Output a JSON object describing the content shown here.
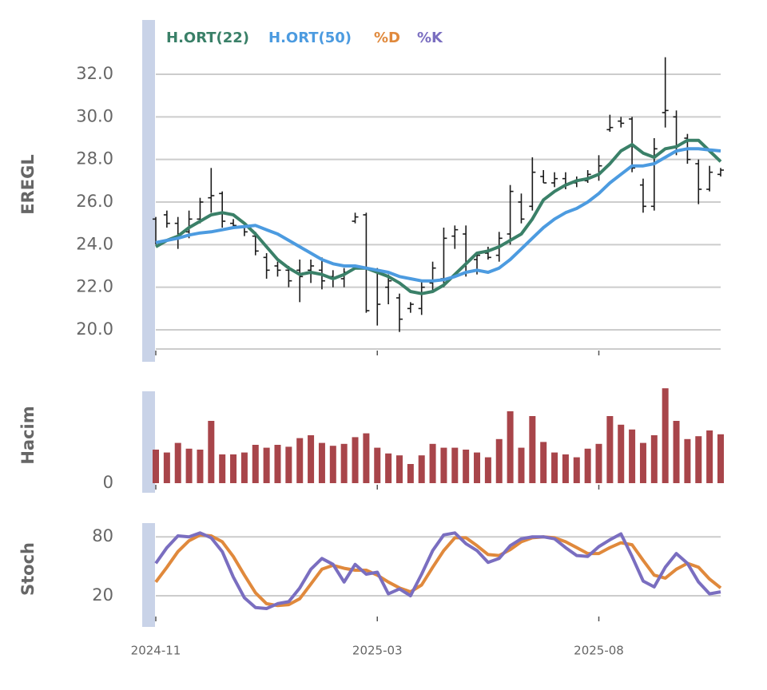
{
  "chart_data": [
    {
      "type": "ohlc",
      "ylabel": "EREGL",
      "color": "#1a1a1a",
      "ylim": [
        19.1,
        34.55
      ],
      "yticks": [
        {
          "value": 20,
          "label": "20.0"
        },
        {
          "value": 22,
          "label": "22.0"
        },
        {
          "value": 24,
          "label": "24.0"
        },
        {
          "value": 26,
          "label": "26.0"
        },
        {
          "value": 28,
          "label": "28.0"
        },
        {
          "value": 30,
          "label": "30.0"
        },
        {
          "value": 32,
          "label": "32.0"
        }
      ],
      "grid": true,
      "ohlc": {
        "open": [
          25.2,
          25.4,
          25.0,
          24.6,
          25.2,
          26.2,
          26.4,
          25.0,
          24.8,
          24.4,
          23.4,
          23.0,
          22.8,
          22.8,
          22.8,
          22.8,
          22.5,
          22.4,
          25.1,
          25.4,
          22.8,
          22.0,
          21.5,
          21.0,
          21.0,
          22.2,
          22.4,
          24.4,
          24.5,
          23.3,
          23.6,
          23.5,
          24.5,
          26.0,
          25.8,
          27.2,
          26.9,
          27.1,
          26.9,
          27.0,
          27.3,
          29.4,
          29.8,
          29.9,
          26.8,
          25.8,
          30.2,
          30.0,
          29.0,
          27.8,
          26.6,
          27.3
        ],
        "high": [
          25.3,
          25.6,
          25.3,
          25.6,
          26.2,
          27.6,
          26.5,
          25.2,
          25.0,
          24.6,
          23.6,
          23.2,
          23.0,
          23.3,
          23.3,
          23.4,
          22.8,
          22.9,
          25.5,
          25.5,
          22.9,
          22.6,
          21.7,
          21.3,
          22.3,
          23.2,
          24.8,
          24.9,
          24.9,
          23.6,
          23.9,
          24.6,
          26.8,
          26.4,
          28.1,
          27.5,
          27.4,
          27.4,
          27.2,
          27.5,
          28.2,
          30.1,
          30.0,
          30.0,
          27.1,
          29.0,
          32.8,
          30.3,
          29.2,
          28.0,
          27.7,
          27.6
        ],
        "low": [
          24.0,
          24.8,
          23.8,
          24.3,
          25.0,
          25.5,
          24.8,
          24.8,
          24.4,
          23.5,
          22.4,
          22.5,
          22.0,
          21.3,
          22.2,
          21.9,
          22.0,
          22.0,
          25.0,
          20.8,
          20.2,
          21.2,
          19.9,
          20.8,
          20.7,
          21.8,
          22.0,
          23.8,
          22.5,
          22.6,
          23.3,
          23.2,
          24.0,
          25.0,
          25.6,
          26.9,
          26.7,
          26.6,
          26.7,
          26.9,
          27.0,
          29.3,
          29.5,
          27.4,
          25.5,
          25.6,
          29.5,
          28.2,
          27.8,
          25.9,
          26.5,
          27.2
        ],
        "close": [
          24.1,
          25.0,
          24.5,
          25.2,
          26.0,
          26.3,
          25.1,
          24.9,
          24.6,
          23.7,
          22.8,
          22.8,
          22.3,
          22.5,
          23.0,
          22.3,
          22.4,
          22.7,
          25.3,
          20.9,
          21.2,
          22.3,
          20.5,
          21.2,
          22.0,
          22.9,
          24.3,
          24.7,
          23.2,
          23.5,
          23.4,
          24.3,
          26.5,
          25.2,
          27.4,
          26.9,
          27.1,
          26.8,
          27.0,
          27.3,
          27.7,
          29.5,
          29.7,
          27.6,
          25.8,
          28.5,
          30.3,
          28.4,
          28.0,
          26.6,
          27.4,
          27.5
        ]
      },
      "series": [
        {
          "name": "H.ORT(22)",
          "color": "#3a8068",
          "values": [
            23.9,
            24.2,
            24.4,
            24.8,
            25.1,
            25.4,
            25.5,
            25.4,
            25.0,
            24.5,
            23.9,
            23.3,
            22.9,
            22.6,
            22.7,
            22.6,
            22.4,
            22.6,
            22.9,
            22.9,
            22.7,
            22.5,
            22.2,
            21.8,
            21.7,
            21.8,
            22.1,
            22.6,
            23.1,
            23.6,
            23.7,
            23.9,
            24.2,
            24.5,
            25.2,
            26.1,
            26.5,
            26.8,
            27.0,
            27.1,
            27.3,
            27.8,
            28.4,
            28.7,
            28.3,
            28.1,
            28.5,
            28.6,
            28.9,
            28.9,
            28.4,
            27.9
          ]
        },
        {
          "name": "H.ORT(50)",
          "color": "#4c9be0",
          "values": [
            24.1,
            24.2,
            24.3,
            24.45,
            24.55,
            24.6,
            24.7,
            24.8,
            24.85,
            24.9,
            24.7,
            24.5,
            24.2,
            23.9,
            23.6,
            23.3,
            23.1,
            23.0,
            23.0,
            22.9,
            22.8,
            22.7,
            22.5,
            22.4,
            22.3,
            22.3,
            22.35,
            22.5,
            22.7,
            22.8,
            22.7,
            22.9,
            23.3,
            23.8,
            24.3,
            24.8,
            25.2,
            25.5,
            25.7,
            26.0,
            26.4,
            26.9,
            27.3,
            27.7,
            27.7,
            27.8,
            28.1,
            28.4,
            28.5,
            28.5,
            28.45,
            28.4
          ]
        }
      ]
    },
    {
      "type": "bar",
      "ylabel": "Hacim",
      "color": "#a8454a",
      "ylim": [
        0,
        100
      ],
      "yticks": [
        0
      ],
      "values": [
        35,
        32,
        42,
        36,
        35,
        65,
        30,
        30,
        32,
        40,
        37,
        40,
        38,
        47,
        50,
        42,
        39,
        41,
        48,
        52,
        37,
        31,
        29,
        20,
        29,
        41,
        37,
        37,
        35,
        32,
        27,
        46,
        75,
        37,
        70,
        43,
        32,
        30,
        27,
        36,
        41,
        70,
        61,
        56,
        42,
        50,
        99,
        65,
        46,
        49,
        55,
        51
      ]
    },
    {
      "type": "line",
      "ylabel": "Stoch",
      "ylim": [
        0.5,
        94
      ],
      "yticks": [
        20,
        80
      ],
      "grid": true,
      "xticks": [
        {
          "value": 0,
          "label": "2024-11"
        },
        {
          "value": 20,
          "label": "2025-03"
        },
        {
          "value": 40,
          "label": "2025-08"
        }
      ],
      "series": [
        {
          "name": "%D",
          "color": "#e0893c",
          "values": [
            34,
            49,
            65,
            76,
            82,
            81,
            75,
            60,
            41,
            23,
            12,
            10,
            11,
            17,
            32,
            47,
            51,
            48,
            46,
            46,
            41,
            34,
            28,
            24,
            31,
            49,
            66,
            79,
            79,
            71,
            62,
            61,
            67,
            75,
            79,
            80,
            79,
            75,
            69,
            63,
            63,
            69,
            74,
            72,
            56,
            41,
            38,
            47,
            53,
            49,
            37,
            28
          ]
        },
        {
          "name": "%K",
          "color": "#7a6ec0",
          "values": [
            53,
            69,
            81,
            80,
            84,
            79,
            65,
            39,
            18,
            8,
            7,
            12,
            14,
            28,
            47,
            58,
            52,
            34,
            52,
            42,
            44,
            22,
            27,
            20,
            42,
            66,
            82,
            84,
            73,
            66,
            54,
            58,
            71,
            78,
            80,
            80,
            78,
            69,
            61,
            60,
            70,
            77,
            83,
            60,
            35,
            29,
            49,
            63,
            53,
            34,
            22,
            24
          ]
        }
      ]
    }
  ]
}
